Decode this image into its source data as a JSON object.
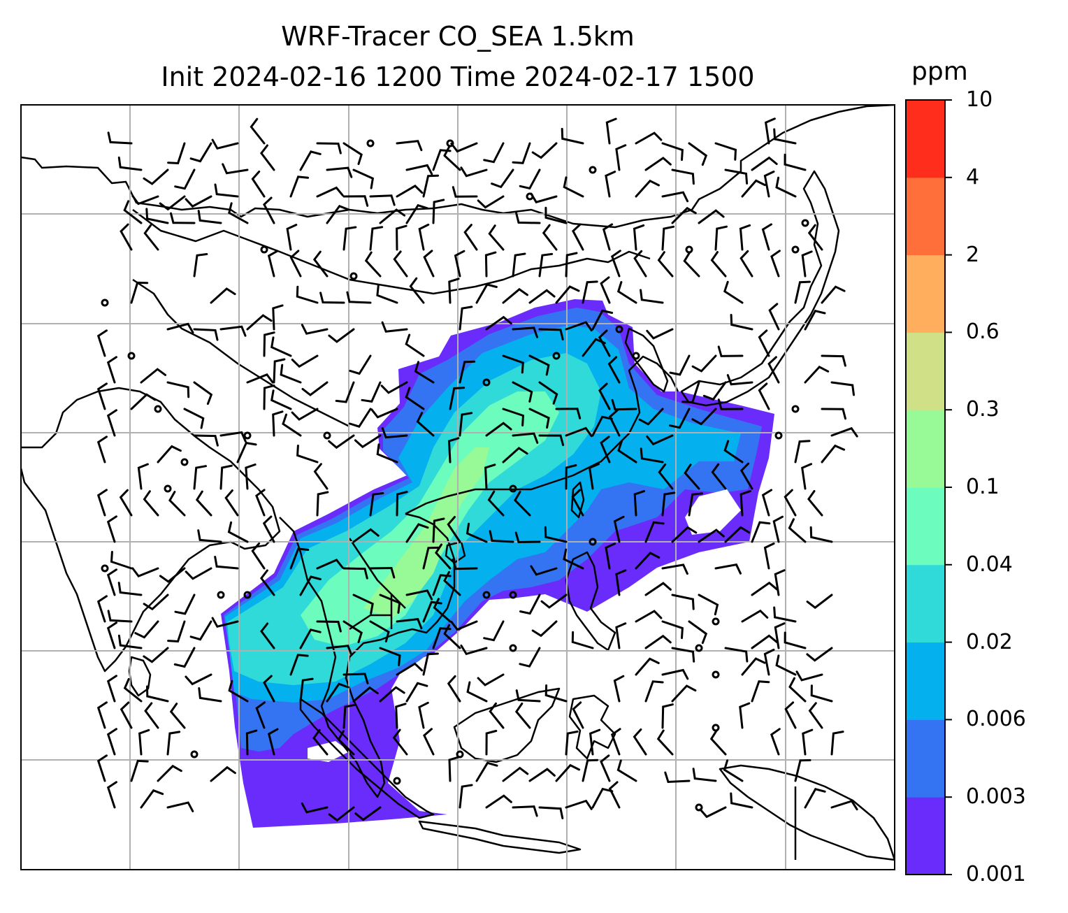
{
  "title": {
    "line1": "WRF-Tracer CO_SEA 1.5km",
    "line2": "Init 2024-02-16 1200 Time 2024-02-17 1500"
  },
  "colorbar": {
    "unit": "ppm",
    "levels": [
      "0.001",
      "0.003",
      "0.006",
      "0.02",
      "0.04",
      "0.1",
      "0.3",
      "0.6",
      "2",
      "4",
      "10"
    ],
    "colors": [
      "#6a2cfb",
      "#3474f2",
      "#04b0ed",
      "#2fdad8",
      "#6cfcbd",
      "#98fa97",
      "#cfe087",
      "#ffae5d",
      "#ff6f3a",
      "#fe2d1c"
    ]
  },
  "map": {
    "gridlines": true,
    "coastline_color": "#000000",
    "wind_barbs": true,
    "tracer_field": "CO_SEA"
  }
}
